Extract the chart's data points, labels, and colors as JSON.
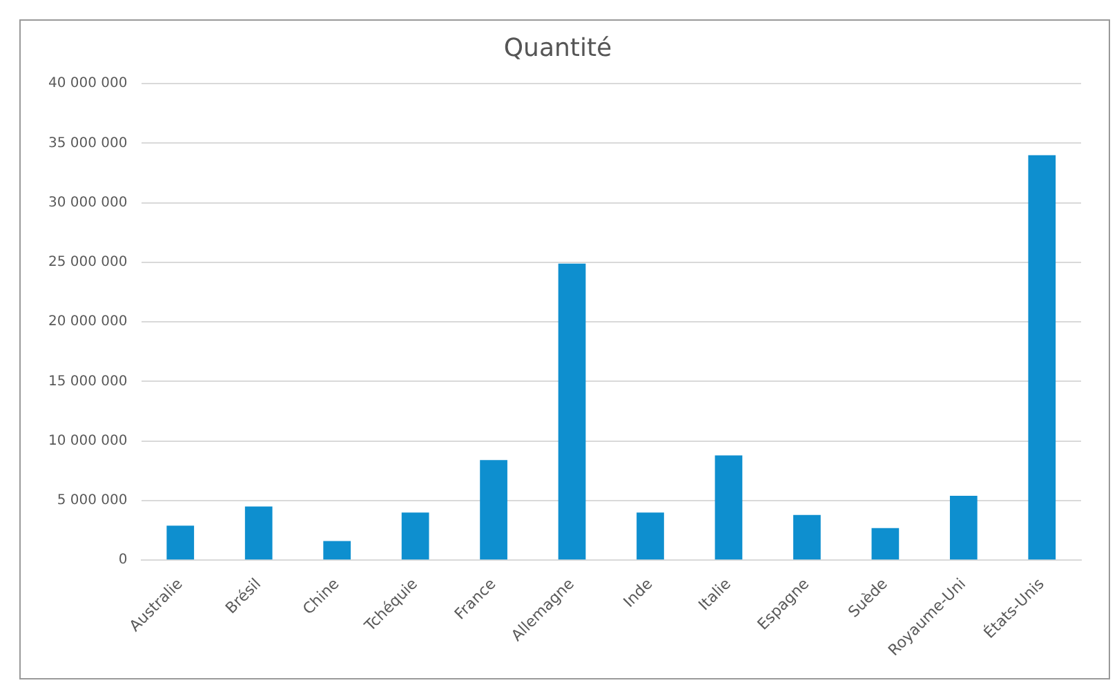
{
  "chart_data": {
    "type": "bar",
    "title": "Quantité",
    "categories": [
      "Australie",
      "Brésil",
      "Chine",
      "Tchéquie",
      "France",
      "Allemagne",
      "Inde",
      "Italie",
      "Espagne",
      "Suède",
      "Royaume-Uni",
      "États-Unis"
    ],
    "values": [
      2900000,
      4500000,
      1600000,
      4000000,
      8400000,
      24900000,
      4000000,
      8800000,
      3800000,
      2700000,
      5400000,
      34000000
    ],
    "color": "#0e8fcf",
    "ylim": [
      0,
      40000000
    ],
    "yticks": [
      0,
      5000000,
      10000000,
      15000000,
      20000000,
      25000000,
      30000000,
      35000000,
      40000000
    ],
    "grid": "y",
    "legend": false
  }
}
